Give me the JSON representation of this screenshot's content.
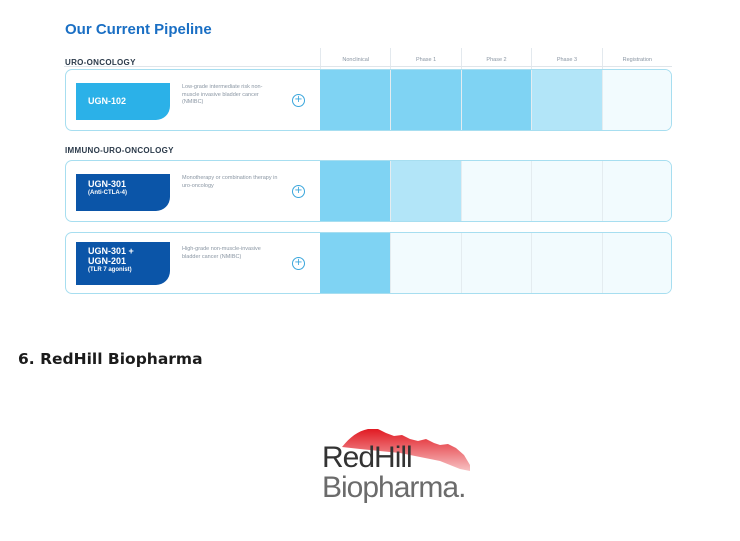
{
  "pipeline": {
    "title": "Our Current Pipeline",
    "phase_headers": [
      "Nonclinical",
      "Phase 1",
      "Phase 2",
      "Phase 3",
      "Registration"
    ],
    "sections": [
      {
        "label": "URO-ONCOLOGY"
      },
      {
        "label": "IMMUNO-URO-ONCOLOGY"
      }
    ],
    "programs": [
      {
        "name": "UGN-102",
        "subtitle": "",
        "description": "Low-grade intermediate risk non-muscle invasive bladder cancer (NMIBC)",
        "progress_phases_completed": 4,
        "badge_color": "#2bb1e8"
      },
      {
        "name": "UGN-301",
        "subtitle": "(Anti-CTLA-4)",
        "description": "Monotherapy or combination therapy in uro-oncology",
        "progress_phases_completed": 2,
        "badge_color": "#0b55a8"
      },
      {
        "name_line1": "UGN-301 +",
        "name_line2": "UGN-201",
        "subtitle": "(TLR 7 agonist)",
        "description": "High-grade non-muscle-invasive bladder cancer (NMIBC)",
        "progress_phases_completed": 1,
        "badge_color": "#0b55a8"
      }
    ],
    "bar_colors": {
      "strong": "#7fd3f3",
      "light": "#b2e5f8",
      "empty": "#f2fbfe"
    },
    "expand_symbol": "+"
  },
  "heading": "6. RedHill Biopharma",
  "logo": {
    "line1": "RedHill",
    "line2": "Biopharma.",
    "accent_color": "#d9141b"
  }
}
